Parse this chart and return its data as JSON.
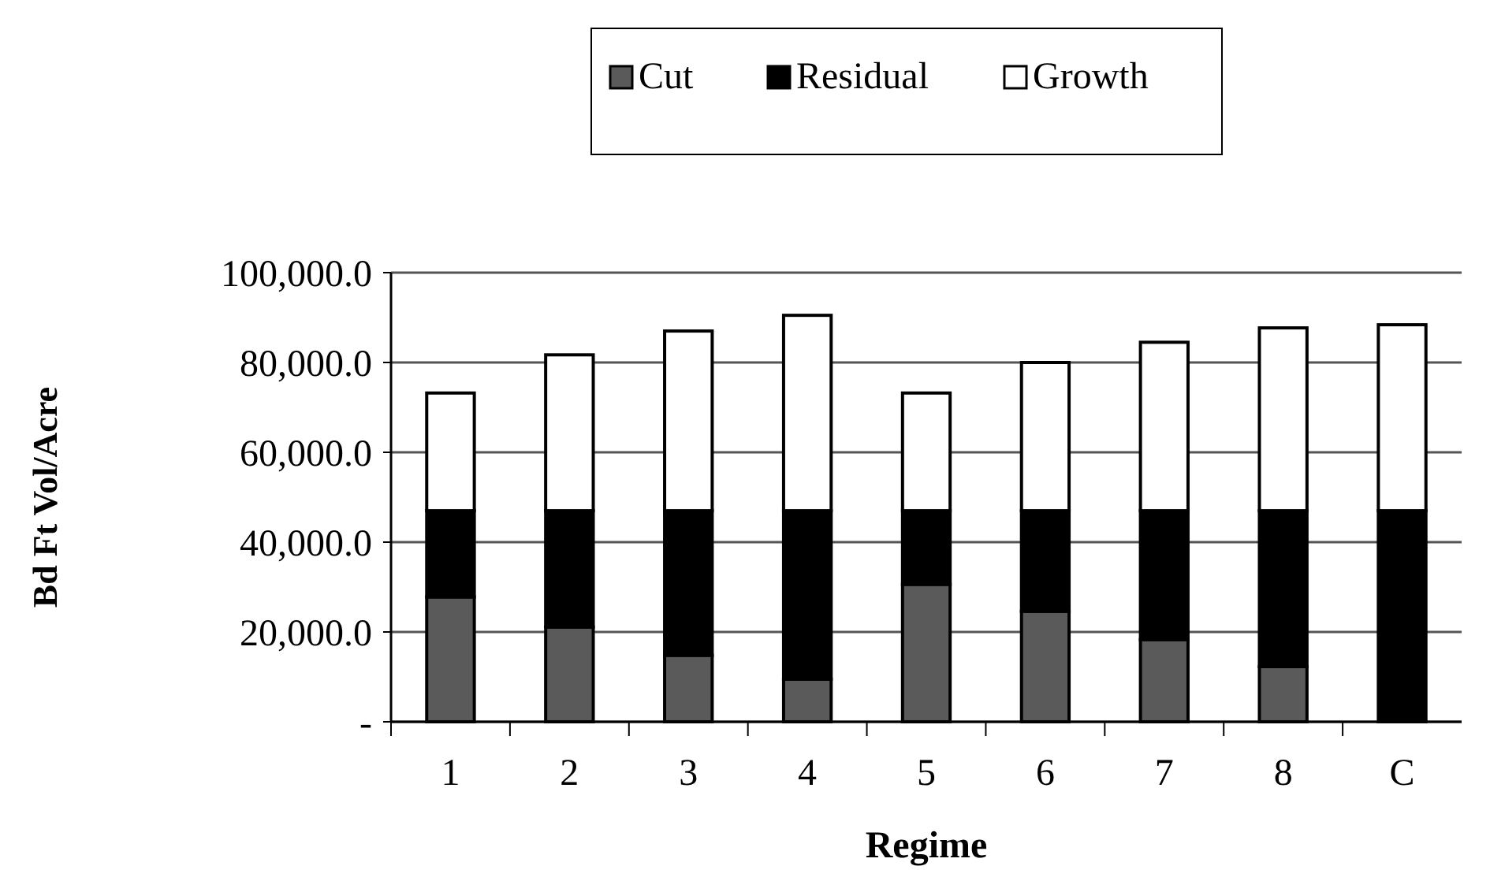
{
  "chart_data": {
    "type": "bar",
    "stacked": true,
    "xlabel": "Regime",
    "ylabel": "Bd Ft Vol/Acre",
    "categories": [
      "1",
      "2",
      "3",
      "4",
      "5",
      "6",
      "7",
      "8",
      "C"
    ],
    "series": [
      {
        "name": "Cut",
        "color": "#5a5a5a",
        "values": [
          27800,
          21100,
          14800,
          9500,
          30600,
          24600,
          18300,
          12300,
          0
        ]
      },
      {
        "name": "Residual",
        "color": "#000000",
        "values": [
          19200,
          25900,
          32200,
          37500,
          16400,
          22400,
          28700,
          34700,
          47000
        ]
      },
      {
        "name": "Growth",
        "color": "#ffffff",
        "values": [
          26200,
          34700,
          40000,
          43500,
          26200,
          33000,
          37500,
          40700,
          41400
        ]
      }
    ],
    "ylim": [
      0,
      100000
    ],
    "yticks": [
      {
        "value": 0,
        "label": "-"
      },
      {
        "value": 20000,
        "label": "20,000.0"
      },
      {
        "value": 40000,
        "label": "40,000.0"
      },
      {
        "value": 60000,
        "label": "60,000.0"
      },
      {
        "value": 80000,
        "label": "80,000.0"
      },
      {
        "value": 100000,
        "label": "100,000.0"
      }
    ],
    "grid": "y",
    "legend": "top"
  }
}
